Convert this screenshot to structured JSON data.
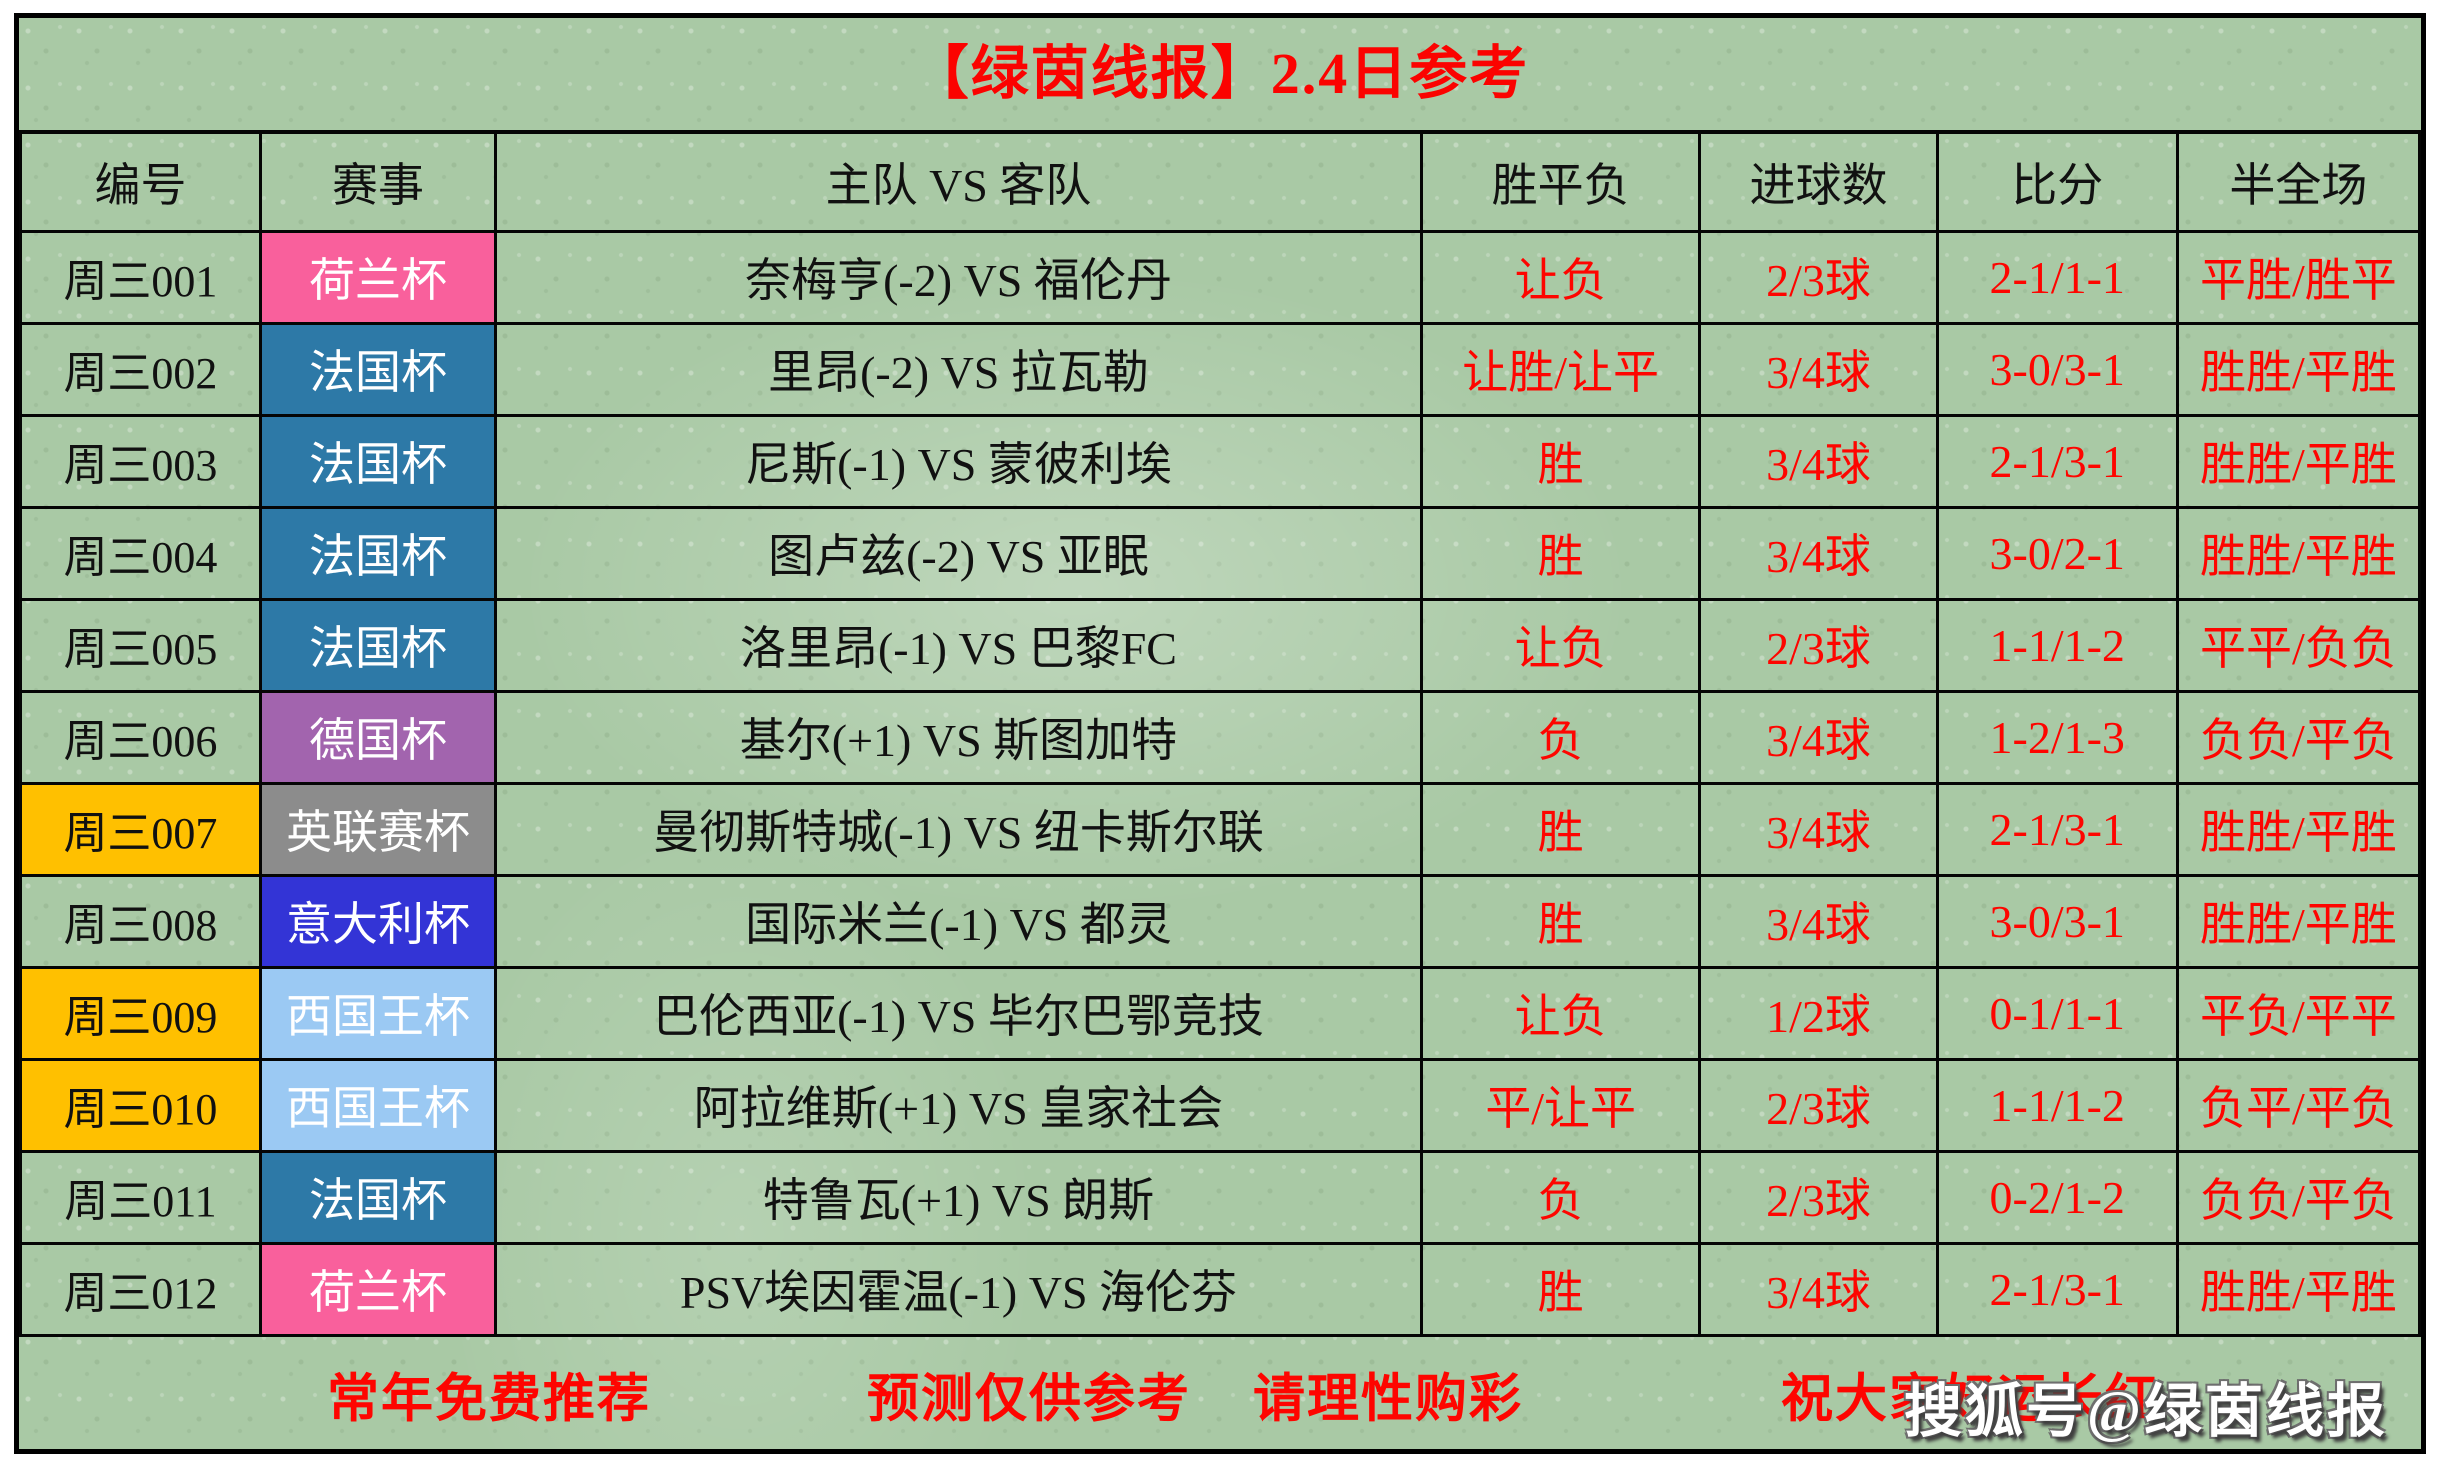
{
  "title": "【绿茵线报】2.4日参考",
  "columns": [
    "编号",
    "赛事",
    "主队 VS 客队",
    "胜平负",
    "进球数",
    "比分",
    "半全场"
  ],
  "rows": [
    {
      "id": "周三001",
      "id_bg": "",
      "league": "荷兰杯",
      "league_bg": "#f9609c",
      "league_fg": "#ffffff",
      "match": "奈梅亨(-2) VS 福伦丹",
      "wdl": "让负",
      "goals": "2/3球",
      "score": "2-1/1-1",
      "half_full": "平胜/胜平"
    },
    {
      "id": "周三002",
      "id_bg": "",
      "league": "法国杯",
      "league_bg": "#2d79a7",
      "league_fg": "#ffffff",
      "match": "里昂(-2) VS 拉瓦勒",
      "wdl": "让胜/让平",
      "goals": "3/4球",
      "score": "3-0/3-1",
      "half_full": "胜胜/平胜"
    },
    {
      "id": "周三003",
      "id_bg": "",
      "league": "法国杯",
      "league_bg": "#2d79a7",
      "league_fg": "#ffffff",
      "match": "尼斯(-1) VS 蒙彼利埃",
      "wdl": "胜",
      "goals": "3/4球",
      "score": "2-1/3-1",
      "half_full": "胜胜/平胜"
    },
    {
      "id": "周三004",
      "id_bg": "",
      "league": "法国杯",
      "league_bg": "#2d79a7",
      "league_fg": "#ffffff",
      "match": "图卢兹(-2) VS 亚眠",
      "wdl": "胜",
      "goals": "3/4球",
      "score": "3-0/2-1",
      "half_full": "胜胜/平胜"
    },
    {
      "id": "周三005",
      "id_bg": "",
      "league": "法国杯",
      "league_bg": "#2d79a7",
      "league_fg": "#ffffff",
      "match": "洛里昂(-1) VS 巴黎FC",
      "wdl": "让负",
      "goals": "2/3球",
      "score": "1-1/1-2",
      "half_full": "平平/负负"
    },
    {
      "id": "周三006",
      "id_bg": "",
      "league": "德国杯",
      "league_bg": "#a264ae",
      "league_fg": "#ffffff",
      "match": "基尔(+1) VS 斯图加特",
      "wdl": "负",
      "goals": "3/4球",
      "score": "1-2/1-3",
      "half_full": "负负/平负"
    },
    {
      "id": "周三007",
      "id_bg": "#ffc000",
      "league": "英联赛杯",
      "league_bg": "#8c8c8c",
      "league_fg": "#ffffff",
      "match": "曼彻斯特城(-1) VS 纽卡斯尔联",
      "wdl": "胜",
      "goals": "3/4球",
      "score": "2-1/3-1",
      "half_full": "胜胜/平胜"
    },
    {
      "id": "周三008",
      "id_bg": "",
      "league": "意大利杯",
      "league_bg": "#3334d6",
      "league_fg": "#ffffff",
      "match": "国际米兰(-1) VS 都灵",
      "wdl": "胜",
      "goals": "3/4球",
      "score": "3-0/3-1",
      "half_full": "胜胜/平胜"
    },
    {
      "id": "周三009",
      "id_bg": "#ffc000",
      "league": "西国王杯",
      "league_bg": "#9bc9f3",
      "league_fg": "#ffffff",
      "match": "巴伦西亚(-1) VS 毕尔巴鄂竞技",
      "wdl": "让负",
      "goals": "1/2球",
      "score": "0-1/1-1",
      "half_full": "平负/平平"
    },
    {
      "id": "周三010",
      "id_bg": "#ffc000",
      "league": "西国王杯",
      "league_bg": "#9bc9f3",
      "league_fg": "#ffffff",
      "match": "阿拉维斯(+1) VS 皇家社会",
      "wdl": "平/让平",
      "goals": "2/3球",
      "score": "1-1/1-2",
      "half_full": "负平/平负"
    },
    {
      "id": "周三011",
      "id_bg": "",
      "league": "法国杯",
      "league_bg": "#2d79a7",
      "league_fg": "#ffffff",
      "match": "特鲁瓦(+1) VS 朗斯",
      "wdl": "负",
      "goals": "2/3球",
      "score": "0-2/1-2",
      "half_full": "负负/平负"
    },
    {
      "id": "周三012",
      "id_bg": "",
      "league": "荷兰杯",
      "league_bg": "#f9609c",
      "league_fg": "#ffffff",
      "match": "PSV埃因霍温(-1) VS 海伦芬",
      "wdl": "胜",
      "goals": "3/4球",
      "score": "2-1/3-1",
      "half_full": "胜胜/平胜"
    }
  ],
  "footer": {
    "phrases": [
      "常年免费推荐",
      "预测仅供参考",
      "请理性购彩",
      "祝大家好运长红"
    ]
  },
  "watermark": {
    "text": "搜狐号@绿茵线报"
  },
  "colors": {
    "background_green": "#a9c9a5",
    "title_red": "#fb0300",
    "prediction_red": "#fe0500",
    "grid_black": "#050505",
    "highlight_orange": "#ffc000",
    "league_dutch_pink": "#f9609c",
    "league_french_blue": "#2d79a7",
    "league_german_purple": "#a264ae",
    "league_english_gray": "#8c8c8c",
    "league_italian_blue": "#3334d6",
    "league_spanish_lightblue": "#9bc9f3",
    "watermark_white": "#ffffff"
  }
}
